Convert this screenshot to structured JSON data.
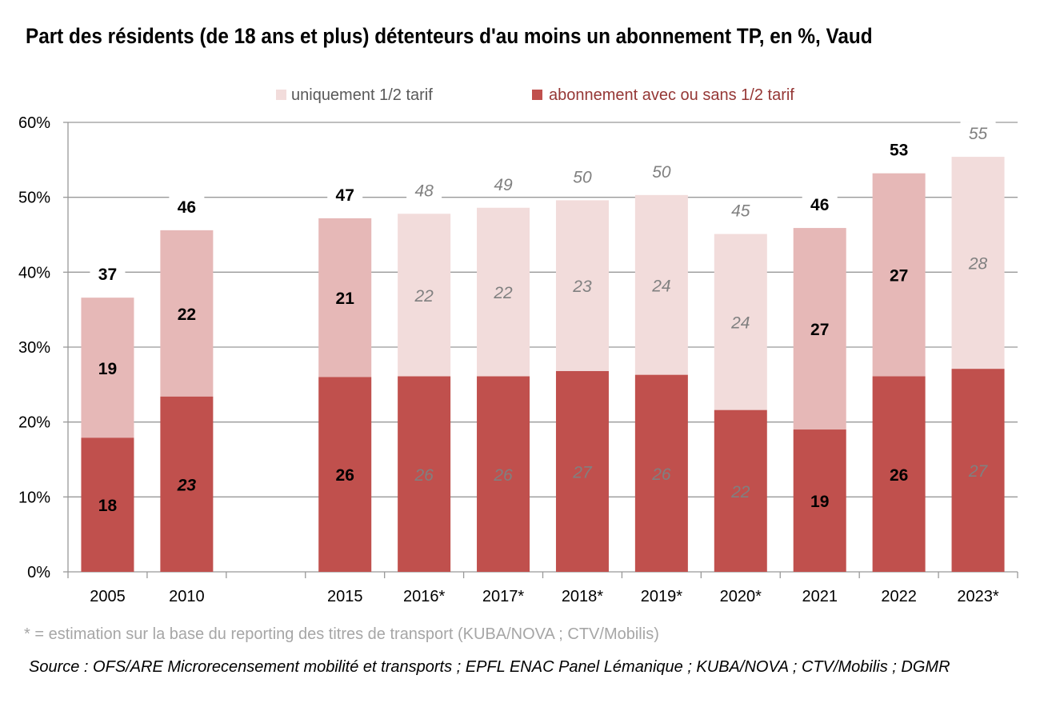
{
  "chart_data": {
    "type": "bar",
    "stacked": true,
    "title": "Part des résidents (de 18 ans et plus) détenteurs d'au moins un abonnement TP, en %, Vaud",
    "categories": [
      "2005",
      "2010",
      "",
      "2015",
      "2016*",
      "2017*",
      "2018*",
      "2019*",
      "2020*",
      "2021",
      "2022",
      "2023*"
    ],
    "estimated": [
      false,
      false,
      false,
      false,
      true,
      true,
      true,
      true,
      true,
      false,
      false,
      true
    ],
    "series": [
      {
        "name": "abonnement avec ou sans 1/2 tarif",
        "color": "#c0504d",
        "values": [
          17.9,
          23.4,
          null,
          26.0,
          26.1,
          26.1,
          26.8,
          26.3,
          21.6,
          19.0,
          26.1,
          27.1
        ],
        "labels": [
          "18",
          "23",
          "",
          "26",
          "26",
          "26",
          "27",
          "26",
          "22",
          "19",
          "26",
          "27"
        ]
      },
      {
        "name": "uniquement 1/2 tarif",
        "color": "#e6b8b7",
        "color_estimated": "#f2dcdb",
        "values": [
          18.7,
          22.2,
          null,
          21.2,
          21.7,
          22.5,
          22.8,
          24.0,
          23.5,
          26.9,
          27.1,
          28.3
        ],
        "labels": [
          "19",
          "22",
          "",
          "21",
          "22",
          "22",
          "23",
          "24",
          "24",
          "27",
          "27",
          "28"
        ]
      }
    ],
    "totals": [
      37,
      46,
      null,
      47,
      48,
      49,
      50,
      50,
      45,
      46,
      53,
      55
    ],
    "ylim": [
      0,
      60
    ],
    "yticks": [
      "0%",
      "10%",
      "20%",
      "30%",
      "40%",
      "50%",
      "60%"
    ],
    "grid": true,
    "legend": "top-center"
  },
  "footnote": "* =  estimation sur la base du reporting des titres de transport (KUBA/NOVA ; CTV/Mobilis)",
  "source": "Source : OFS/ARE Microrecensement mobilité et transports ; EPFL ENAC Panel Lémanique ; KUBA/NOVA ; CTV/Mobilis ; DGMR"
}
